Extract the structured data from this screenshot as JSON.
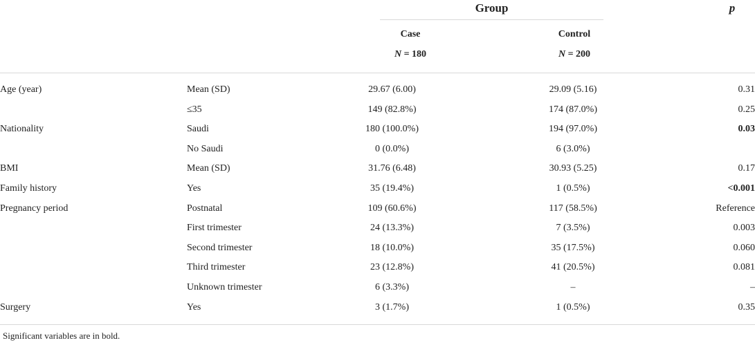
{
  "header": {
    "group_label": "Group",
    "p_label": "p",
    "case_label": "Case",
    "case_n_var": "N",
    "case_n_value": " = 180",
    "control_label": "Control",
    "control_n_var": "N",
    "control_n_value": " = 200"
  },
  "rows": [
    {
      "variable": "Age (year)",
      "category": "Mean (SD)",
      "case": "29.67 (6.00)",
      "control": "29.09 (5.16)",
      "p": "0.31",
      "p_bold": false
    },
    {
      "variable": "",
      "category": "≤35",
      "case": "149 (82.8%)",
      "control": "174 (87.0%)",
      "p": "0.25",
      "p_bold": false
    },
    {
      "variable": "Nationality",
      "category": "Saudi",
      "case": "180 (100.0%)",
      "control": "194 (97.0%)",
      "p": "0.03",
      "p_bold": true
    },
    {
      "variable": "",
      "category": "No Saudi",
      "case": "0 (0.0%)",
      "control": "6 (3.0%)",
      "p": "",
      "p_bold": false
    },
    {
      "variable": "BMI",
      "category": "Mean (SD)",
      "case": "31.76 (6.48)",
      "control": "30.93 (5.25)",
      "p": "0.17",
      "p_bold": false
    },
    {
      "variable": "Family history",
      "category": "Yes",
      "case": "35 (19.4%)",
      "control": "1 (0.5%)",
      "p": "<0.001",
      "p_bold": true
    },
    {
      "variable": "Pregnancy period",
      "category": "Postnatal",
      "case": "109 (60.6%)",
      "control": "117 (58.5%)",
      "p": "Reference",
      "p_bold": false
    },
    {
      "variable": "",
      "category": "First trimester",
      "case": "24 (13.3%)",
      "control": "7 (3.5%)",
      "p": "0.003",
      "p_bold": false
    },
    {
      "variable": "",
      "category": "Second trimester",
      "case": "18 (10.0%)",
      "control": "35 (17.5%)",
      "p": "0.060",
      "p_bold": false
    },
    {
      "variable": "",
      "category": "Third trimester",
      "case": "23 (12.8%)",
      "control": "41 (20.5%)",
      "p": "0.081",
      "p_bold": false
    },
    {
      "variable": "",
      "category": "Unknown trimester",
      "case": "6 (3.3%)",
      "control": "–",
      "p": "–",
      "p_bold": false
    },
    {
      "variable": "Surgery",
      "category": "Yes",
      "case": "3 (1.7%)",
      "control": "1 (0.5%)",
      "p": "0.35",
      "p_bold": false
    }
  ],
  "footnote": "Significant variables are in bold."
}
